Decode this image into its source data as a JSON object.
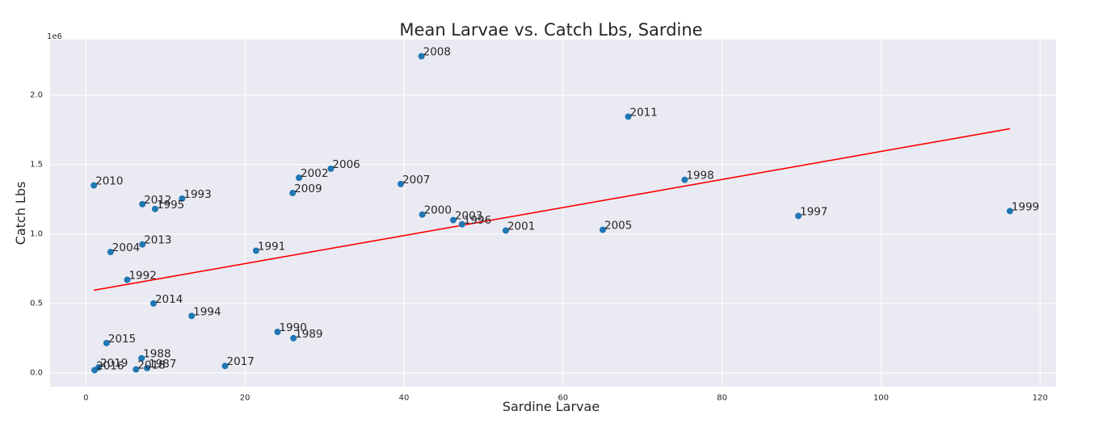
{
  "chart_data": {
    "type": "scatter",
    "title": "Mean Larvae vs. Catch Lbs, Sardine",
    "xlabel": "Sardine Larvae",
    "ylabel": "Catch Lbs",
    "y_offset_label": "1e6",
    "xlim": [
      -4.5,
      122.0
    ],
    "ylim": [
      -0.1,
      2.4
    ],
    "y_units": "millions of lbs (×1e6)",
    "grid": true,
    "x_ticks": [
      0,
      20,
      40,
      60,
      80,
      100,
      120
    ],
    "x_tick_labels": [
      "0",
      "20",
      "40",
      "60",
      "80",
      "100",
      "120"
    ],
    "y_ticks": [
      0.0,
      0.5,
      1.0,
      1.5,
      2.0
    ],
    "y_tick_labels": [
      "0.0",
      "0.5",
      "1.0",
      "1.5",
      "2.0"
    ],
    "marker_color": "#1f77b4",
    "trendline": {
      "color": "#ff0000",
      "x": [
        1.0,
        116.2
      ],
      "y": [
        0.595,
        1.758
      ]
    },
    "points": [
      {
        "label": "2008",
        "x": 42.2,
        "y": 2.28
      },
      {
        "label": "2011",
        "x": 68.2,
        "y": 1.845
      },
      {
        "label": "2006",
        "x": 30.8,
        "y": 1.47
      },
      {
        "label": "2002",
        "x": 26.8,
        "y": 1.405
      },
      {
        "label": "2007",
        "x": 39.6,
        "y": 1.36
      },
      {
        "label": "1998",
        "x": 75.3,
        "y": 1.39
      },
      {
        "label": "2010",
        "x": 1.0,
        "y": 1.35
      },
      {
        "label": "2009",
        "x": 26.0,
        "y": 1.295
      },
      {
        "label": "1993",
        "x": 12.1,
        "y": 1.255
      },
      {
        "label": "2012",
        "x": 7.1,
        "y": 1.215
      },
      {
        "label": "1995",
        "x": 8.7,
        "y": 1.18
      },
      {
        "label": "1999",
        "x": 116.2,
        "y": 1.165
      },
      {
        "label": "2000",
        "x": 42.3,
        "y": 1.14
      },
      {
        "label": "1997",
        "x": 89.6,
        "y": 1.13
      },
      {
        "label": "2003",
        "x": 46.2,
        "y": 1.1
      },
      {
        "label": "1996",
        "x": 47.3,
        "y": 1.07
      },
      {
        "label": "2001",
        "x": 52.8,
        "y": 1.025
      },
      {
        "label": "2005",
        "x": 65.0,
        "y": 1.03
      },
      {
        "label": "2013",
        "x": 7.1,
        "y": 0.925
      },
      {
        "label": "1991",
        "x": 21.4,
        "y": 0.88
      },
      {
        "label": "2004",
        "x": 3.1,
        "y": 0.87
      },
      {
        "label": "1992",
        "x": 5.2,
        "y": 0.67
      },
      {
        "label": "2014",
        "x": 8.5,
        "y": 0.5
      },
      {
        "label": "1994",
        "x": 13.3,
        "y": 0.41
      },
      {
        "label": "1990",
        "x": 24.1,
        "y": 0.295
      },
      {
        "label": "1989",
        "x": 26.1,
        "y": 0.25
      },
      {
        "label": "2015",
        "x": 2.6,
        "y": 0.215
      },
      {
        "label": "1988",
        "x": 7.0,
        "y": 0.105
      },
      {
        "label": "2017",
        "x": 17.5,
        "y": 0.05
      },
      {
        "label": "1987",
        "x": 7.7,
        "y": 0.035
      },
      {
        "label": "2018",
        "x": 6.3,
        "y": 0.025
      },
      {
        "label": "2019",
        "x": 1.6,
        "y": 0.04
      },
      {
        "label": "2016",
        "x": 1.1,
        "y": 0.02
      }
    ]
  }
}
